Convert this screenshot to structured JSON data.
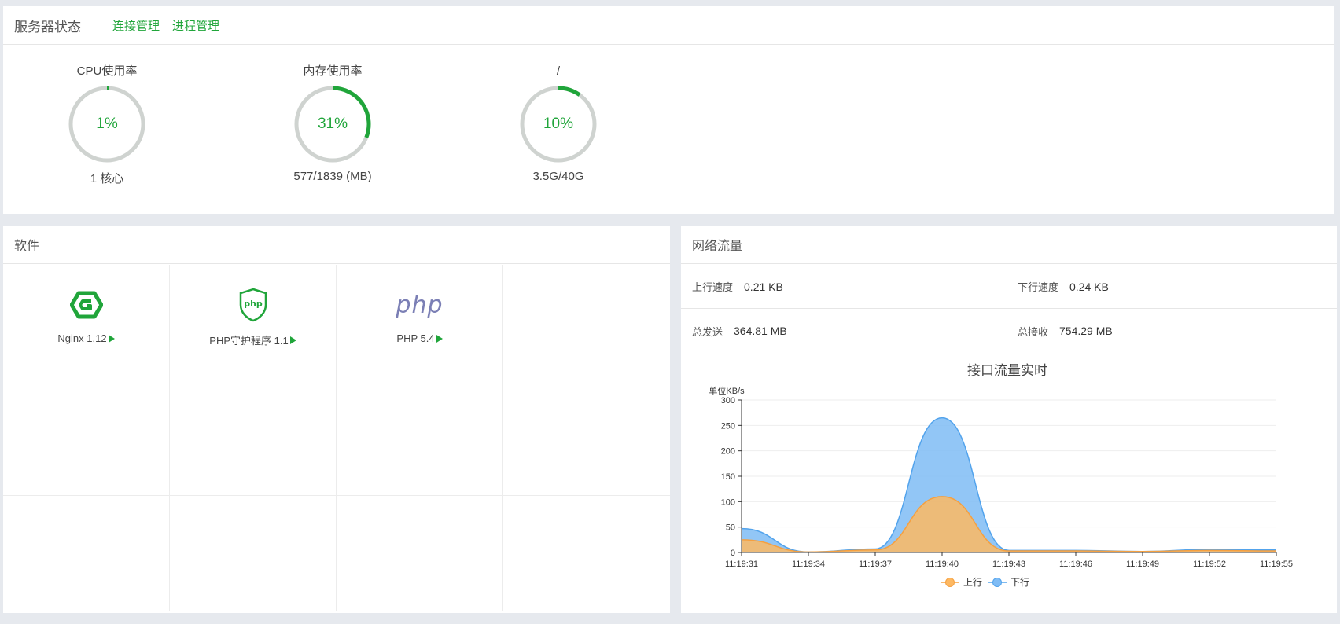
{
  "status": {
    "title": "服务器状态",
    "links": [
      "连接管理",
      "进程管理"
    ],
    "gauges": [
      {
        "title": "CPU使用率",
        "value_text": "1%",
        "percent": 1,
        "detail": "1 核心"
      },
      {
        "title": "内存使用率",
        "value_text": "31%",
        "percent": 31,
        "detail": "577/1839 (MB)"
      },
      {
        "title": "/",
        "value_text": "10%",
        "percent": 10,
        "detail": "3.5G/40G"
      }
    ],
    "colors": {
      "accent": "#20a53a",
      "track": "#cfd3d0"
    }
  },
  "software": {
    "title": "软件",
    "items": [
      {
        "name": "Nginx 1.12",
        "icon": "nginx-icon"
      },
      {
        "name": "PHP守护程序 1.1",
        "icon": "php-shield-icon"
      },
      {
        "name": "PHP 5.4",
        "icon": "php-logo-icon",
        "logo_text": "php"
      }
    ]
  },
  "network": {
    "title": "网络流量",
    "upload_speed_label": "上行速度",
    "upload_speed_value": "0.21 KB",
    "download_speed_label": "下行速度",
    "download_speed_value": "0.24 KB",
    "total_sent_label": "总发送",
    "total_sent_value": "364.81 MB",
    "total_recv_label": "总接收",
    "total_recv_value": "754.29 MB"
  },
  "chart_data": {
    "type": "area",
    "title": "接口流量实时",
    "ylabel": "单位KB/s",
    "ylim": [
      0,
      300
    ],
    "yticks": [
      0,
      50,
      100,
      150,
      200,
      250,
      300
    ],
    "categories": [
      "11:19:31",
      "11:19:34",
      "11:19:37",
      "11:19:40",
      "11:19:43",
      "11:19:46",
      "11:19:49",
      "11:19:52",
      "11:19:55"
    ],
    "series": [
      {
        "name": "上行",
        "color": "#fdb862",
        "line_color": "#f5a040",
        "values": [
          25,
          1,
          5,
          110,
          3,
          3,
          2,
          4,
          3
        ]
      },
      {
        "name": "下行",
        "color": "#7fbcf5",
        "line_color": "#52a3ec",
        "values": [
          47,
          1,
          7,
          265,
          4,
          4,
          2,
          6,
          5
        ]
      }
    ],
    "legend_position": "bottom-center",
    "grid": true
  }
}
